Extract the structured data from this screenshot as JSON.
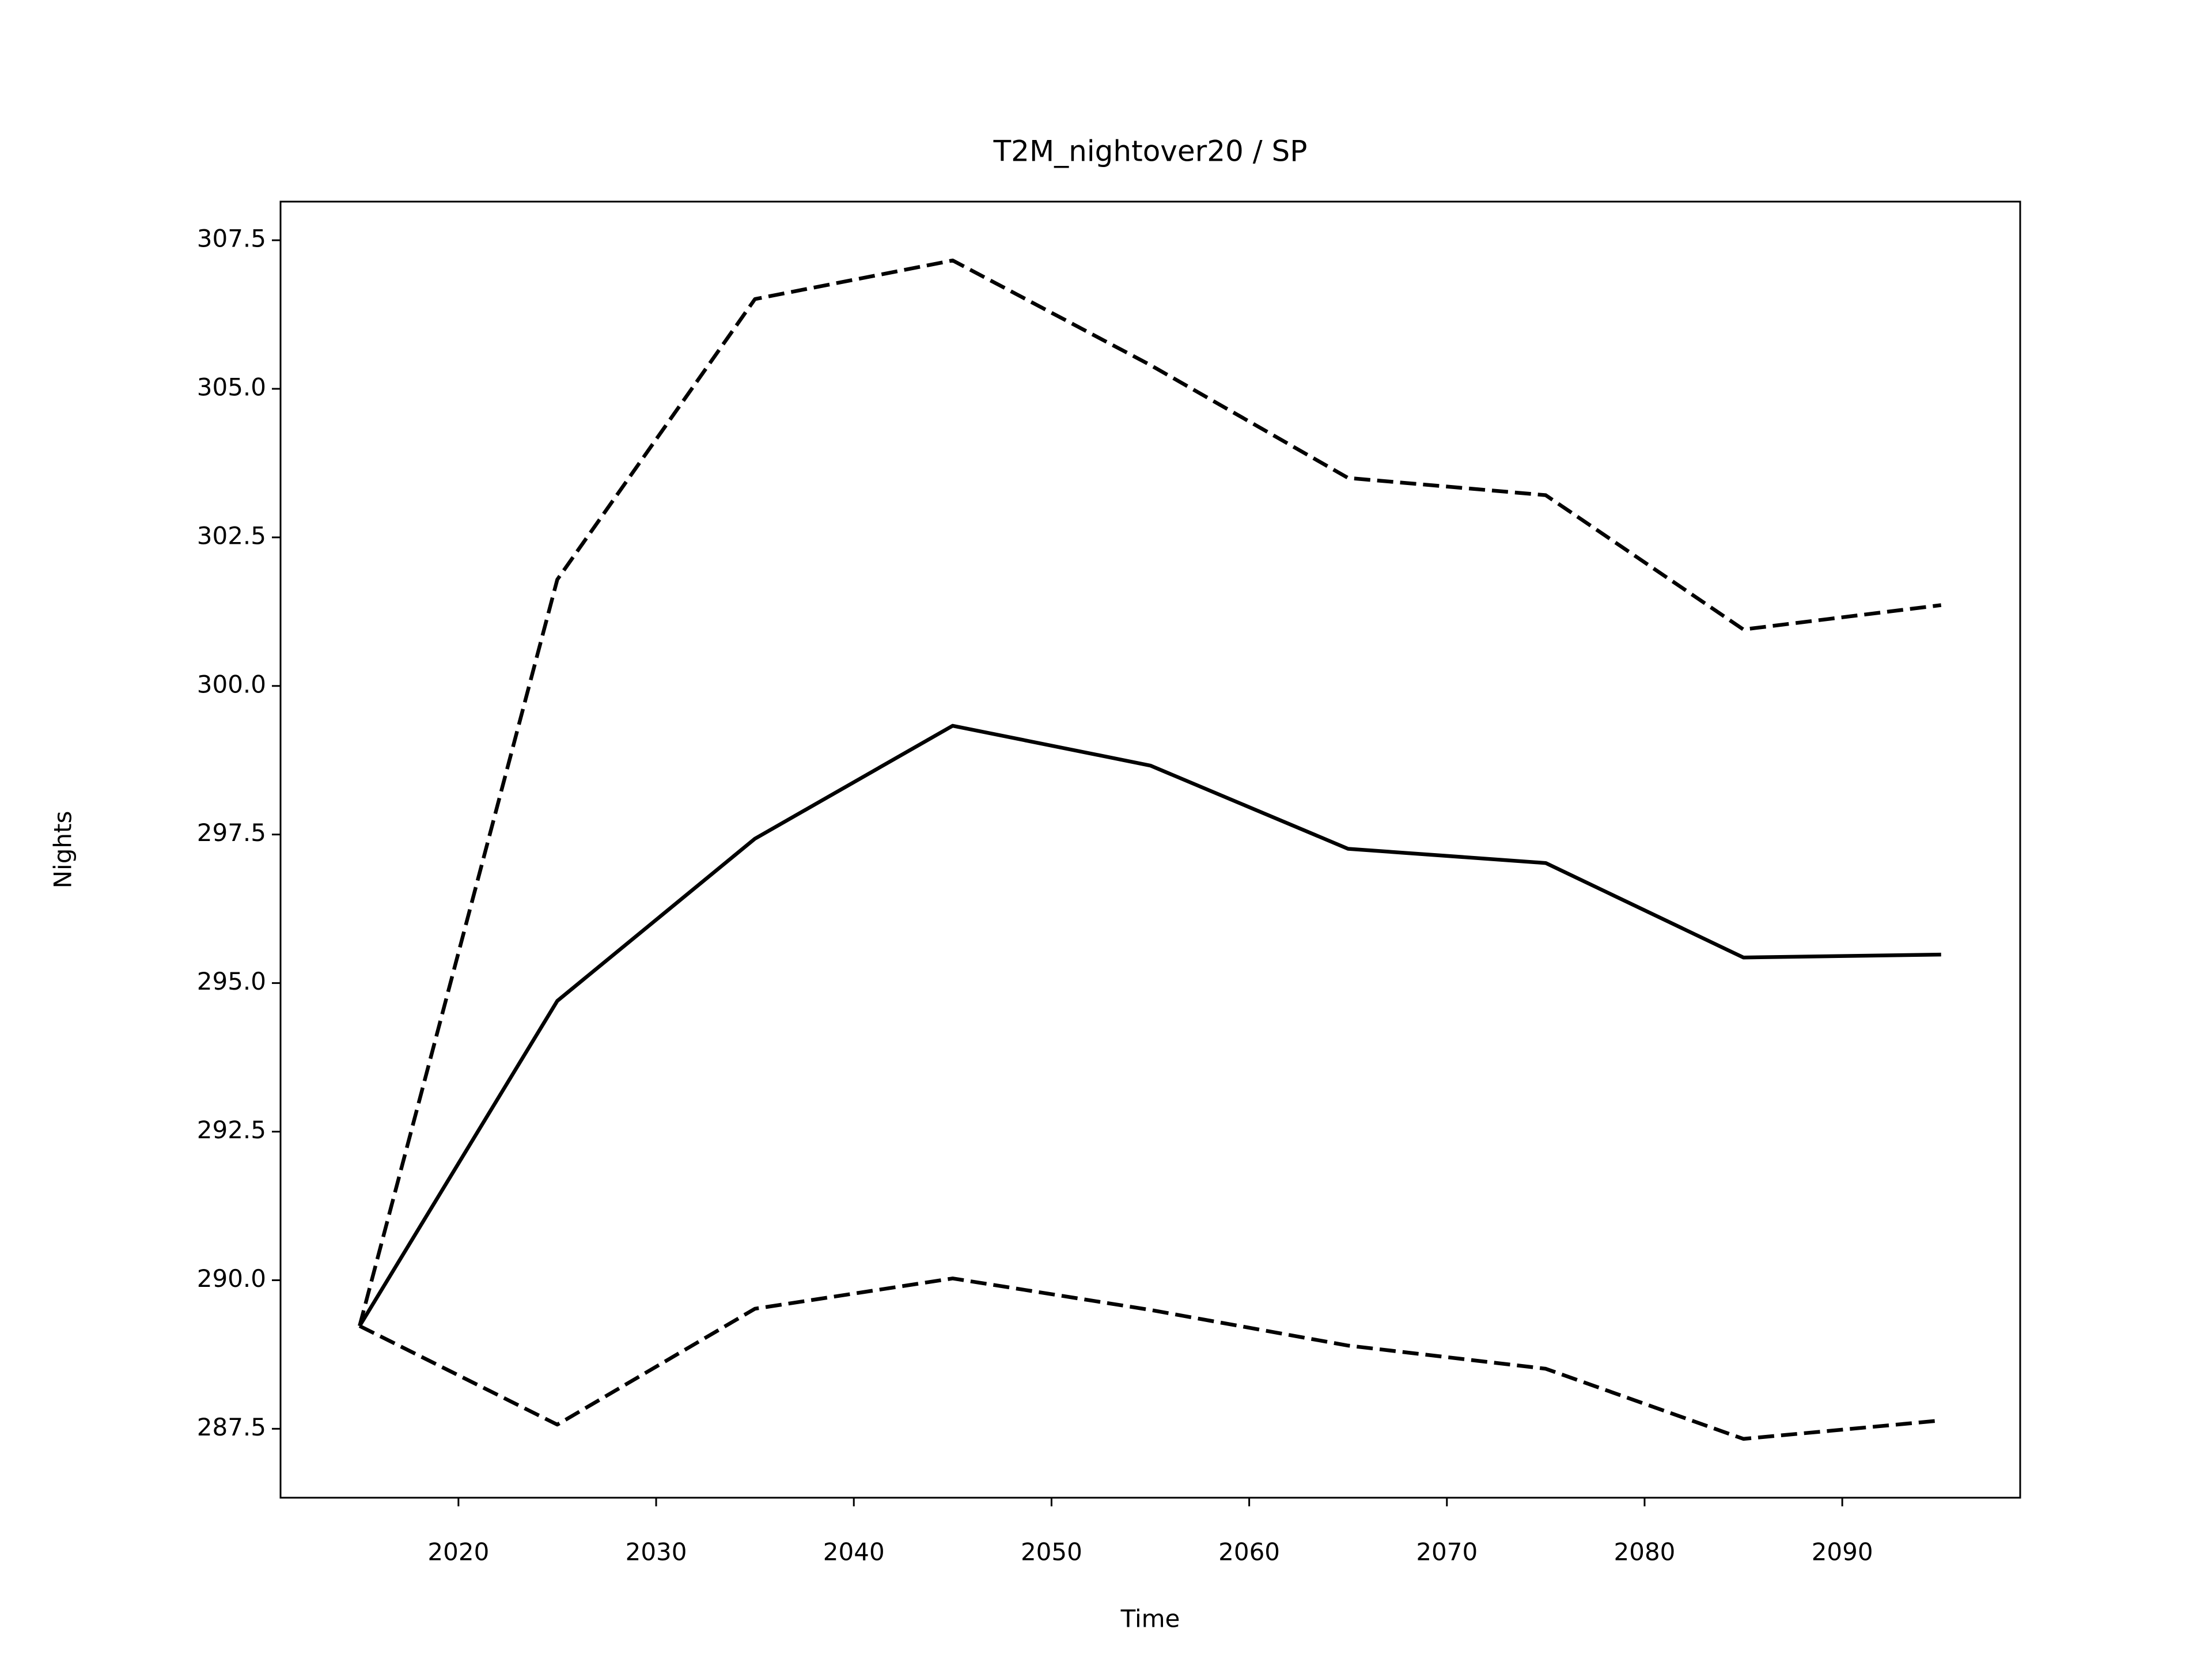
{
  "chart_data": {
    "type": "line",
    "title": "T2M_nightover20 / SP",
    "x_label": "Time",
    "y_label": "Nights",
    "x": [
      2015,
      2025,
      2035,
      2045,
      2055,
      2065,
      2075,
      2085,
      2095
    ],
    "series": [
      {
        "color": "#000000",
        "style": "solid",
        "values": [
          289.23,
          294.7,
          297.43,
          299.33,
          298.66,
          297.26,
          297.02,
          295.43,
          295.48
        ]
      },
      {
        "color": "#000000",
        "style": "dashed",
        "values": [
          289.23,
          301.79,
          306.51,
          307.16,
          305.4,
          303.5,
          303.21,
          300.95,
          301.36
        ]
      },
      {
        "color": "#000000",
        "style": "dashed",
        "values": [
          289.23,
          287.57,
          289.52,
          290.03,
          289.5,
          288.9,
          288.51,
          287.33,
          287.64
        ]
      }
    ],
    "xlim": [
      2011,
      2099
    ],
    "xticks": [
      2020,
      2030,
      2040,
      2050,
      2060,
      2070,
      2080,
      2090
    ],
    "ylim": [
      286.34,
      308.15
    ],
    "yticks": [
      287.5,
      {
        "value": 290,
        "label": "290.0"
      },
      292.5,
      {
        "value": 295,
        "label": "295.0"
      },
      297.5,
      {
        "value": 300,
        "label": "300.0"
      },
      302.5,
      {
        "value": 305,
        "label": "305.0"
      },
      307.5
    ],
    "grid": false
  }
}
